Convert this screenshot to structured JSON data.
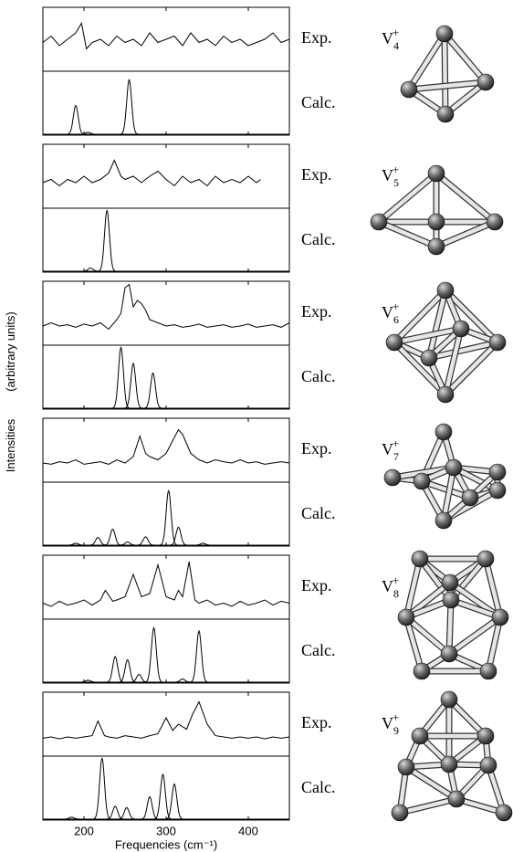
{
  "chart_data": {
    "type": "spectra",
    "xlabel": "Frequencies (cm⁻¹)",
    "ylabel": [
      "Intensities",
      "(arbitrary units)"
    ],
    "exp_label": "Exp.",
    "calc_label": "Calc.",
    "xlim": [
      150,
      450
    ],
    "xticks": [
      200,
      300,
      400
    ],
    "ylim": [
      0,
      1
    ],
    "color": "#000000",
    "panels": [
      {
        "formula": {
          "element": "V",
          "size": "4",
          "charge": "+"
        },
        "exp": {
          "x": [
            150,
            160,
            170,
            180,
            190,
            197,
            203,
            210,
            220,
            230,
            240,
            250,
            260,
            270,
            280,
            290,
            300,
            310,
            320,
            330,
            340,
            350,
            360,
            370,
            380,
            390,
            400,
            410,
            420,
            430,
            440,
            450
          ],
          "values": [
            0.45,
            0.55,
            0.4,
            0.5,
            0.6,
            0.75,
            0.35,
            0.45,
            0.5,
            0.4,
            0.55,
            0.45,
            0.5,
            0.4,
            0.6,
            0.45,
            0.5,
            0.55,
            0.4,
            0.6,
            0.45,
            0.5,
            0.4,
            0.55,
            0.45,
            0.5,
            0.4,
            0.45,
            0.5,
            0.6,
            0.45,
            0.5
          ]
        },
        "calc": {
          "x": [
            190,
            205,
            255
          ],
          "values": [
            0.45,
            0.03,
            0.85
          ]
        }
      },
      {
        "formula": {
          "element": "V",
          "size": "5",
          "charge": "+"
        },
        "exp": {
          "x": [
            150,
            160,
            170,
            180,
            190,
            200,
            210,
            220,
            230,
            237,
            245,
            250,
            260,
            270,
            280,
            290,
            300,
            310,
            320,
            330,
            340,
            350,
            360,
            370,
            380,
            390,
            400,
            410,
            415
          ],
          "values": [
            0.4,
            0.45,
            0.35,
            0.45,
            0.4,
            0.5,
            0.4,
            0.45,
            0.55,
            0.75,
            0.5,
            0.45,
            0.5,
            0.4,
            0.5,
            0.58,
            0.45,
            0.35,
            0.5,
            0.4,
            0.45,
            0.35,
            0.5,
            0.4,
            0.45,
            0.4,
            0.5,
            0.4,
            0.45
          ]
        },
        "calc": {
          "x": [
            208,
            228
          ],
          "values": [
            0.05,
            0.95
          ]
        }
      },
      {
        "formula": {
          "element": "V",
          "size": "6",
          "charge": "+"
        },
        "exp": {
          "x": [
            150,
            160,
            170,
            180,
            190,
            200,
            210,
            220,
            230,
            240,
            245,
            250,
            255,
            260,
            265,
            270,
            275,
            280,
            290,
            300,
            310,
            320,
            330,
            340,
            350,
            360,
            370,
            380,
            390,
            400,
            410,
            420,
            430,
            440,
            450
          ],
          "values": [
            0.3,
            0.35,
            0.3,
            0.32,
            0.28,
            0.33,
            0.3,
            0.35,
            0.25,
            0.4,
            0.5,
            0.9,
            0.95,
            0.6,
            0.7,
            0.65,
            0.55,
            0.4,
            0.35,
            0.3,
            0.32,
            0.28,
            0.3,
            0.33,
            0.28,
            0.3,
            0.32,
            0.28,
            0.3,
            0.33,
            0.28,
            0.3,
            0.32,
            0.28,
            0.35
          ]
        },
        "calc": {
          "x": [
            245,
            260,
            284
          ],
          "values": [
            0.95,
            0.7,
            0.55
          ]
        }
      },
      {
        "formula": {
          "element": "V",
          "size": "7",
          "charge": "+"
        },
        "exp": {
          "x": [
            150,
            160,
            170,
            180,
            190,
            200,
            210,
            220,
            230,
            240,
            250,
            260,
            268,
            275,
            280,
            290,
            300,
            310,
            315,
            320,
            330,
            340,
            350,
            360,
            370,
            380,
            390,
            400,
            410,
            420,
            430,
            440,
            450
          ],
          "values": [
            0.3,
            0.28,
            0.32,
            0.3,
            0.35,
            0.28,
            0.3,
            0.32,
            0.28,
            0.35,
            0.3,
            0.4,
            0.72,
            0.45,
            0.4,
            0.35,
            0.45,
            0.7,
            0.82,
            0.75,
            0.45,
            0.35,
            0.3,
            0.35,
            0.32,
            0.3,
            0.35,
            0.3,
            0.32,
            0.28,
            0.3,
            0.32,
            0.3
          ]
        },
        "calc": {
          "x": [
            190,
            217,
            235,
            253,
            275,
            303,
            315,
            345
          ],
          "values": [
            0.03,
            0.12,
            0.25,
            0.05,
            0.13,
            0.85,
            0.28,
            0.03
          ]
        }
      },
      {
        "formula": {
          "element": "V",
          "size": "8",
          "charge": "+"
        },
        "exp": {
          "x": [
            150,
            160,
            170,
            180,
            190,
            200,
            210,
            220,
            226,
            235,
            240,
            250,
            260,
            270,
            280,
            290,
            300,
            310,
            315,
            320,
            328,
            335,
            340,
            350,
            360,
            370,
            380,
            390,
            400,
            410,
            420,
            430,
            440,
            450
          ],
          "values": [
            0.25,
            0.2,
            0.28,
            0.22,
            0.25,
            0.3,
            0.22,
            0.3,
            0.45,
            0.28,
            0.3,
            0.35,
            0.7,
            0.35,
            0.4,
            0.85,
            0.35,
            0.3,
            0.45,
            0.35,
            0.9,
            0.3,
            0.25,
            0.3,
            0.22,
            0.25,
            0.2,
            0.28,
            0.22,
            0.25,
            0.3,
            0.22,
            0.28,
            0.25
          ]
        },
        "calc": {
          "x": [
            205,
            238,
            253,
            267,
            285,
            320,
            340
          ],
          "values": [
            0.03,
            0.4,
            0.35,
            0.12,
            0.85,
            0.05,
            0.8
          ]
        }
      },
      {
        "formula": {
          "element": "V",
          "size": "9",
          "charge": "+"
        },
        "exp": {
          "x": [
            150,
            160,
            170,
            180,
            190,
            200,
            210,
            217,
            225,
            230,
            240,
            250,
            260,
            270,
            280,
            290,
            300,
            308,
            315,
            325,
            332,
            340,
            350,
            360,
            370,
            380,
            390,
            400,
            410,
            420,
            430,
            440,
            450
          ],
          "values": [
            0.28,
            0.3,
            0.27,
            0.3,
            0.28,
            0.3,
            0.32,
            0.55,
            0.32,
            0.3,
            0.28,
            0.32,
            0.3,
            0.28,
            0.32,
            0.35,
            0.6,
            0.4,
            0.5,
            0.42,
            0.65,
            0.85,
            0.5,
            0.32,
            0.3,
            0.28,
            0.3,
            0.28,
            0.3,
            0.27,
            0.3,
            0.28,
            0.3
          ]
        },
        "calc": {
          "x": [
            185,
            222,
            238,
            252,
            280,
            296,
            310
          ],
          "values": [
            0.03,
            0.95,
            0.2,
            0.18,
            0.35,
            0.7,
            0.55
          ]
        }
      }
    ]
  }
}
